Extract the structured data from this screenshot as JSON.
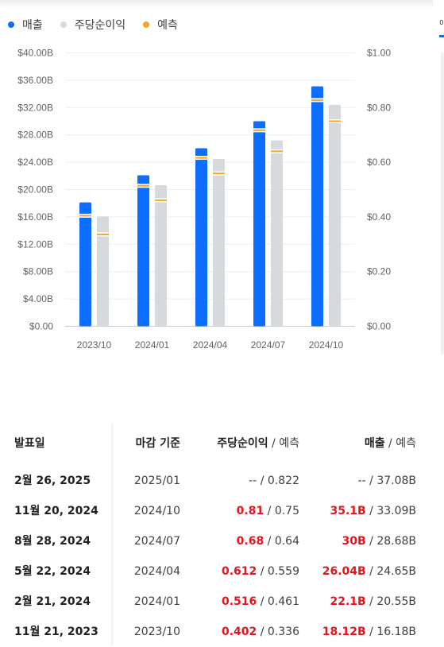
{
  "legend": [
    {
      "label": "매출",
      "color": "#0d6efd"
    },
    {
      "label": "주당순이익",
      "color": "#d7dadd"
    },
    {
      "label": "예측",
      "color": "#f5a623"
    }
  ],
  "right_panel": {
    "tab_label": "이"
  },
  "chart_data": {
    "type": "bar",
    "categories": [
      "2023/10",
      "2024/01",
      "2024/04",
      "2024/07",
      "2024/10"
    ],
    "series": [
      {
        "name": "매출",
        "axis": "left",
        "unit": "B",
        "color": "#0d6efd",
        "values": [
          18.12,
          22.1,
          26.04,
          30.0,
          35.1
        ],
        "forecast": [
          16.18,
          20.55,
          24.65,
          28.68,
          33.09
        ]
      },
      {
        "name": "주당순이익",
        "axis": "right",
        "unit": "$",
        "color": "#d7dadd",
        "values": [
          0.402,
          0.516,
          0.612,
          0.68,
          0.81
        ],
        "forecast": [
          0.336,
          0.461,
          0.559,
          0.64,
          0.75
        ]
      }
    ],
    "forecast_marker_color": "#f5a623",
    "y_left": {
      "min": 0,
      "max": 40,
      "ticks": [
        "$0.00",
        "$4.00B",
        "$8.00B",
        "$12.00B",
        "$16.00B",
        "$20.00B",
        "$24.00B",
        "$28.00B",
        "$32.00B",
        "$36.00B",
        "$40.00B"
      ]
    },
    "y_right": {
      "min": 0,
      "max": 1.0,
      "ticks": [
        "$0.00",
        "$0.20",
        "$0.40",
        "$0.60",
        "$0.80",
        "$1.00"
      ]
    },
    "grid": true
  },
  "table": {
    "headers": {
      "date": "발표일",
      "fiscal": "마감 기준",
      "eps": "주당순이익",
      "eps_forecast": "예측",
      "revenue": "매출",
      "revenue_forecast": "예측",
      "slash": "/"
    },
    "rows": [
      {
        "date": "2월 26, 2025",
        "fiscal": "2025/01",
        "eps": "--",
        "eps_forecast": "0.822",
        "revenue": "--",
        "revenue_forecast": "37.08B",
        "beat": false
      },
      {
        "date": "11월 20, 2024",
        "fiscal": "2024/10",
        "eps": "0.81",
        "eps_forecast": "0.75",
        "revenue": "35.1B",
        "revenue_forecast": "33.09B",
        "beat": true
      },
      {
        "date": "8월 28, 2024",
        "fiscal": "2024/07",
        "eps": "0.68",
        "eps_forecast": "0.64",
        "revenue": "30B",
        "revenue_forecast": "28.68B",
        "beat": true
      },
      {
        "date": "5월 22, 2024",
        "fiscal": "2024/04",
        "eps": "0.612",
        "eps_forecast": "0.559",
        "revenue": "26.04B",
        "revenue_forecast": "24.65B",
        "beat": true
      },
      {
        "date": "2월 21, 2024",
        "fiscal": "2024/01",
        "eps": "0.516",
        "eps_forecast": "0.461",
        "revenue": "22.1B",
        "revenue_forecast": "20.55B",
        "beat": true
      },
      {
        "date": "11월 21, 2023",
        "fiscal": "2023/10",
        "eps": "0.402",
        "eps_forecast": "0.336",
        "revenue": "18.12B",
        "revenue_forecast": "16.18B",
        "beat": true
      }
    ]
  }
}
